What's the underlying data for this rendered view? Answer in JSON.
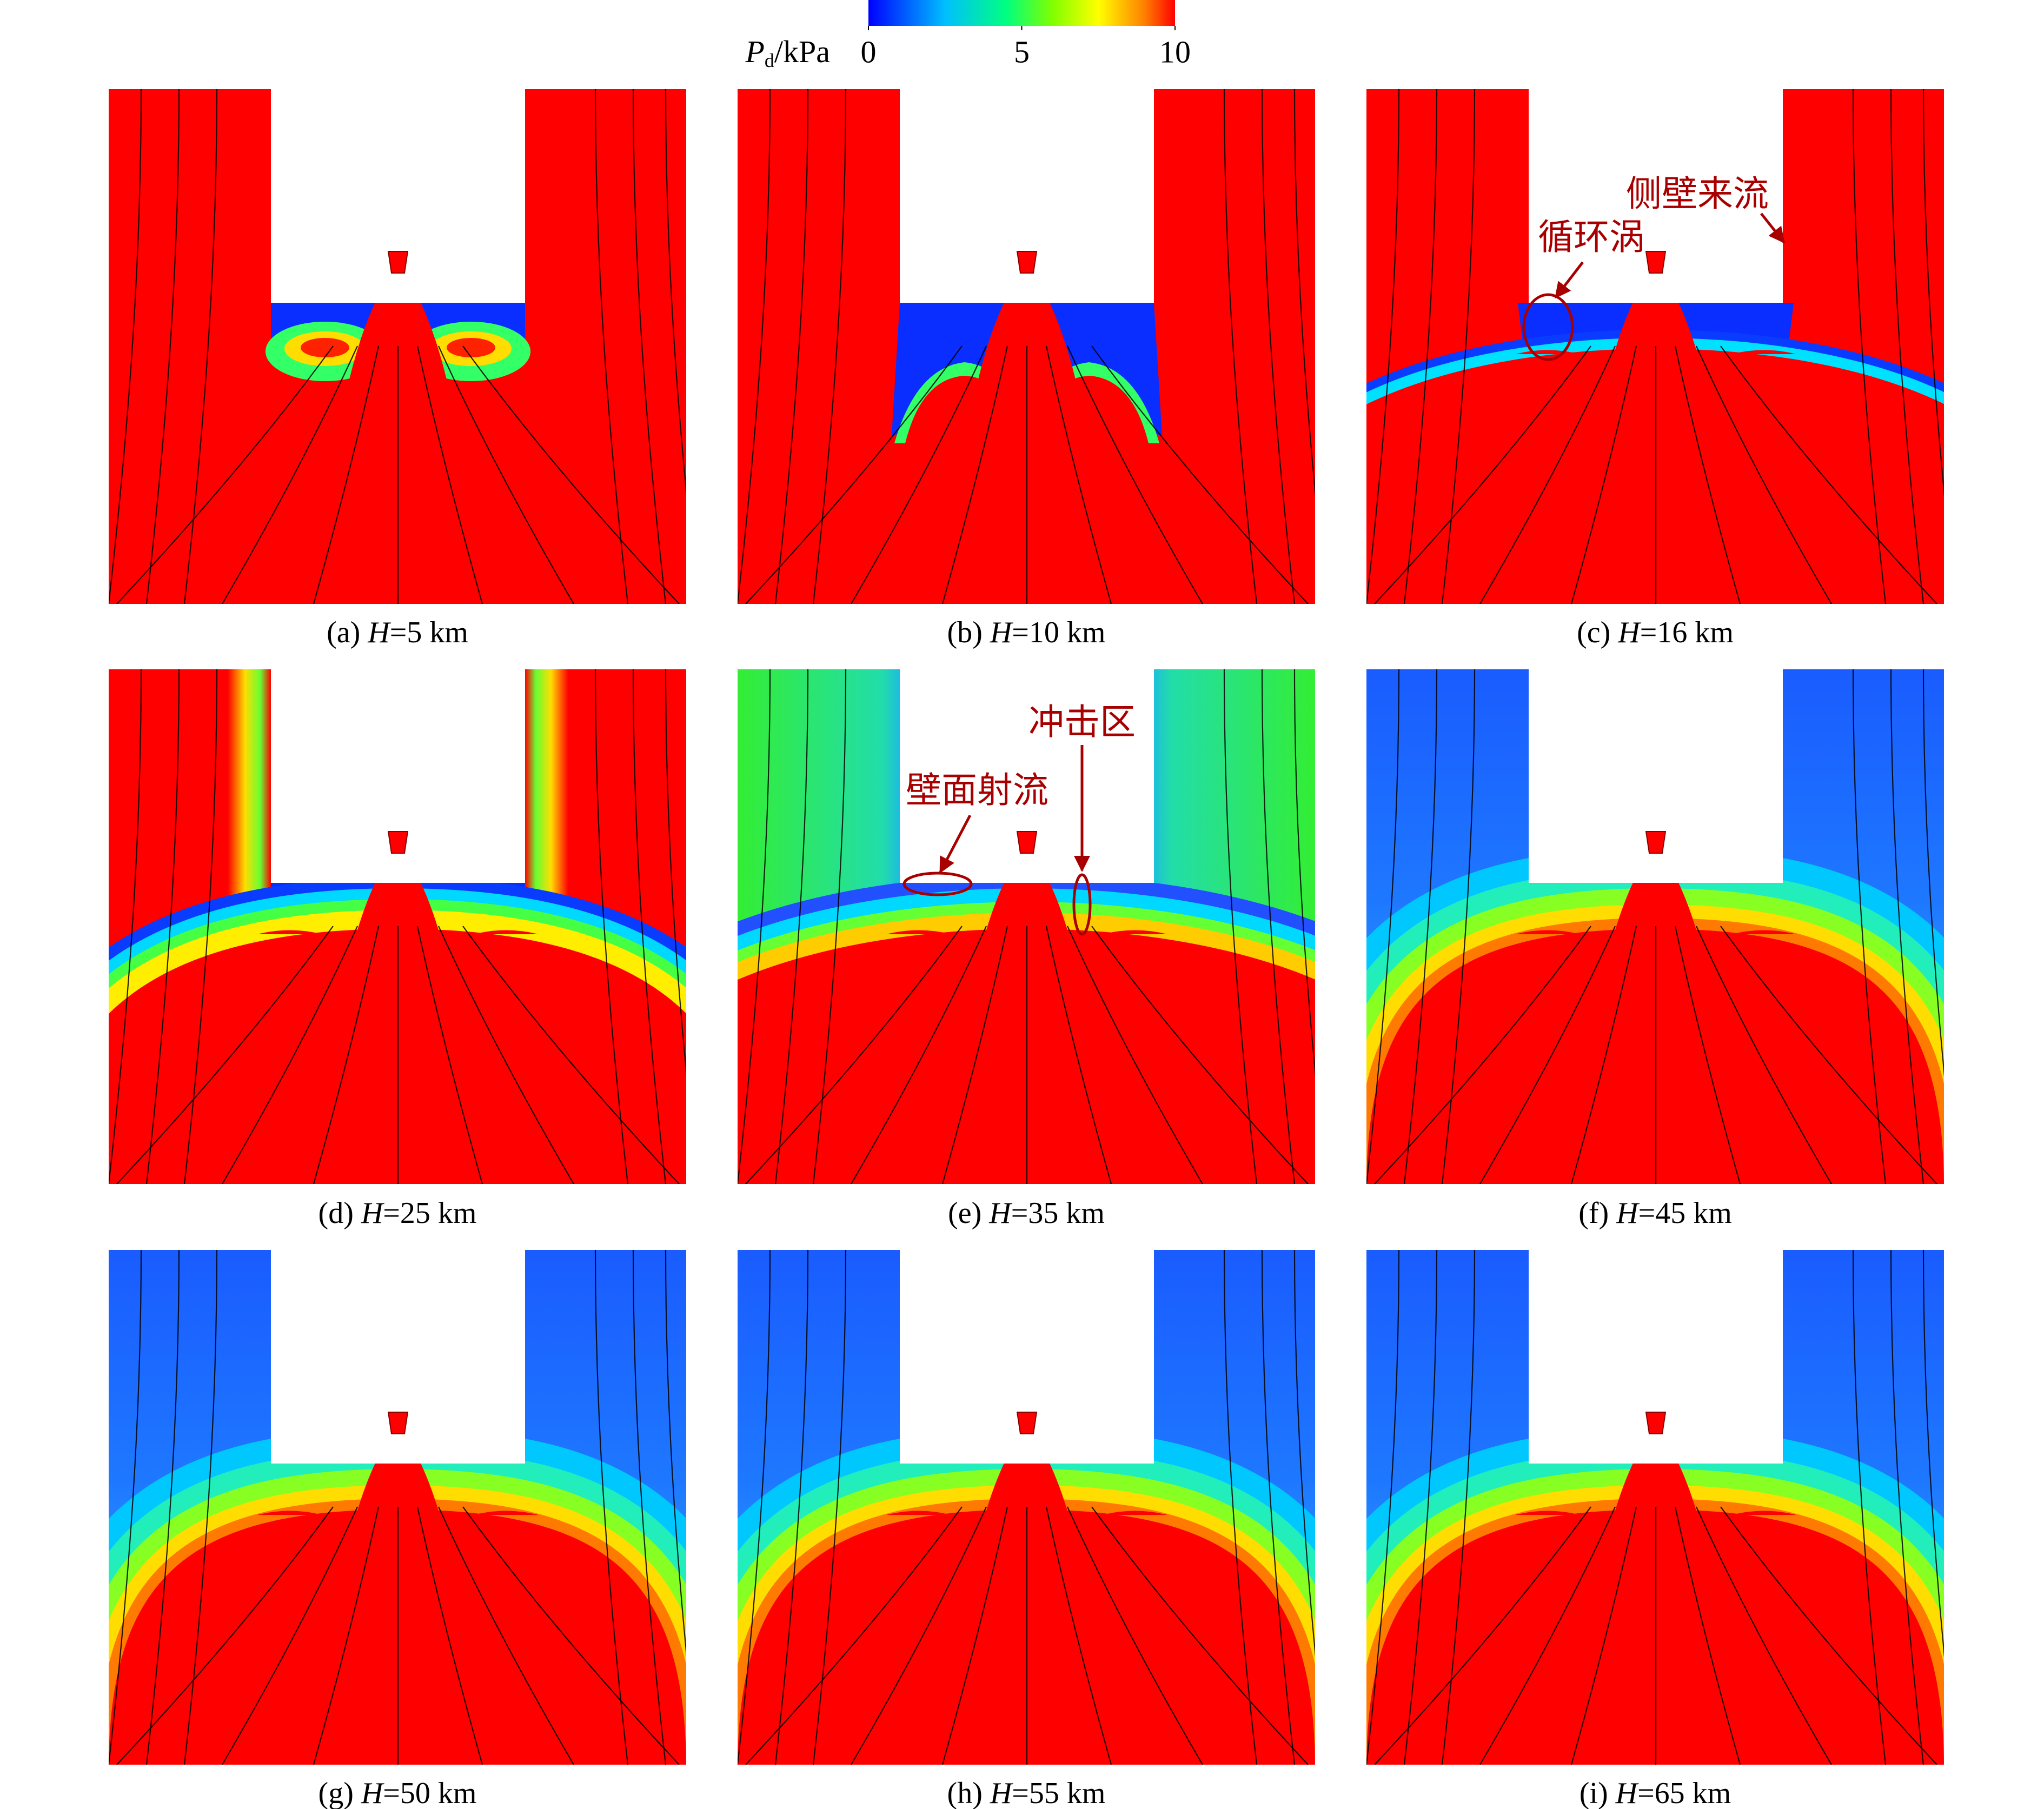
{
  "colorbar": {
    "symbol": "P",
    "subscript": "d",
    "unit": "/kPa",
    "range": [
      0,
      10
    ],
    "ticks": [
      0,
      5,
      10
    ]
  },
  "panels": [
    {
      "label": "(a)",
      "symbol": "H",
      "text": "=5 km"
    },
    {
      "label": "(b)",
      "symbol": "H",
      "text": "=10 km"
    },
    {
      "label": "(c)",
      "symbol": "H",
      "text": "=16 km"
    },
    {
      "label": "(d)",
      "symbol": "H",
      "text": "=25 km"
    },
    {
      "label": "(e)",
      "symbol": "H",
      "text": "=35 km"
    },
    {
      "label": "(f)",
      "symbol": "H",
      "text": "=45 km"
    },
    {
      "label": "(g)",
      "symbol": "H",
      "text": "=50 km"
    },
    {
      "label": "(h)",
      "symbol": "H",
      "text": "=55 km"
    },
    {
      "label": "(i)",
      "symbol": "H",
      "text": "=65 km"
    }
  ],
  "annotations": {
    "c": [
      "循环涡",
      "侧壁来流"
    ],
    "e": [
      "壁面射流",
      "冲击区"
    ]
  }
}
